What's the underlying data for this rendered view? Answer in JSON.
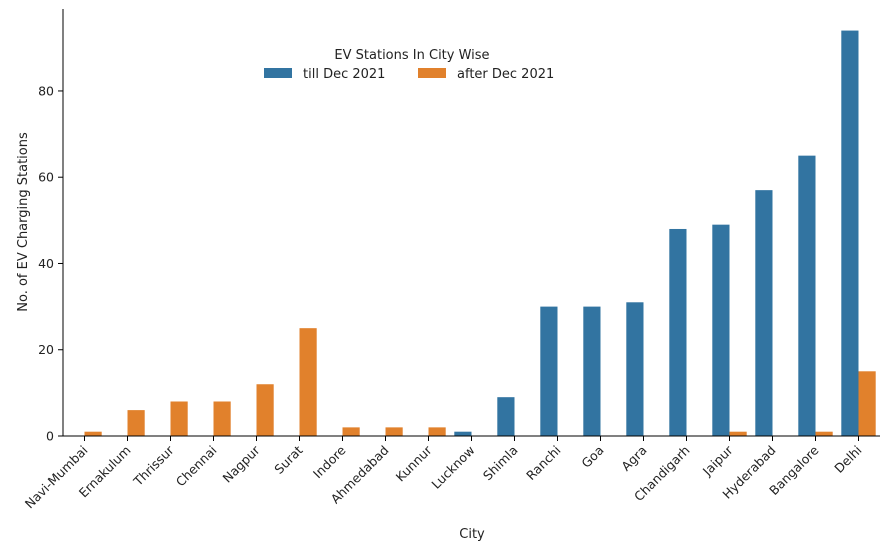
{
  "chart_data": {
    "type": "bar",
    "xlabel": "City",
    "ylabel": "No. of EV Charging Stations",
    "ylim": [
      0,
      99
    ],
    "yticks": [
      0,
      20,
      40,
      60,
      80
    ],
    "legend": {
      "title": "EV Stations In City Wise",
      "placement": "top-center",
      "columns": 2
    },
    "categories": [
      "Navi-Mumbai",
      "Ernakulum",
      "Thrissur",
      "Chennai",
      "Nagpur",
      "Surat",
      "Indore",
      "Ahmedabad",
      "Kunnur",
      "Lucknow",
      "Shimla",
      "Ranchi",
      "Goa",
      "Agra",
      "Chandigarh",
      "Jaipur",
      "Hyderabad",
      "Bangalore",
      "Delhi"
    ],
    "series": [
      {
        "name": "till Dec 2021",
        "color": "#3274a1",
        "values": [
          0,
          0,
          0,
          0,
          0,
          0,
          0,
          0,
          0,
          1,
          9,
          30,
          30,
          31,
          48,
          49,
          57,
          65,
          94
        ]
      },
      {
        "name": "after Dec 2021",
        "color": "#e1812c",
        "values": [
          1,
          6,
          8,
          8,
          12,
          25,
          2,
          2,
          2,
          0,
          0,
          0,
          0,
          0,
          0,
          1,
          0,
          1,
          15
        ]
      }
    ],
    "grid": false,
    "spines": [
      "left",
      "bottom"
    ]
  }
}
